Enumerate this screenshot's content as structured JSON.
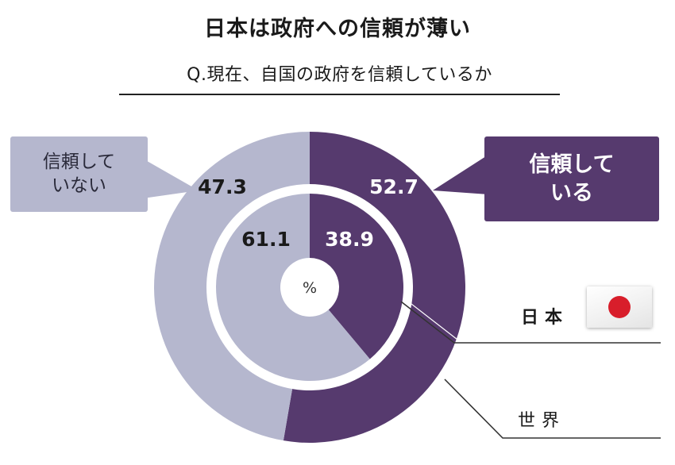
{
  "title": "日本は政府への信頼が薄い",
  "subtitle": "Q.現在、自国の政府を信頼しているか",
  "callouts": {
    "trust": "信頼して\nいる",
    "distrust": "信頼して\nいない"
  },
  "legend": {
    "inner": "日本",
    "outer": "世界"
  },
  "center_unit": "%",
  "colors": {
    "trust": "#563a6e",
    "distrust": "#b5b7ce",
    "text_on_dark": "#ffffff",
    "text_on_light": "#1a1a1a"
  },
  "icons": {
    "japan": "japan-flag-icon"
  },
  "chart_data": {
    "type": "pie",
    "unit": "%",
    "categories": [
      "信頼している",
      "信頼していない"
    ],
    "series": [
      {
        "name": "世界",
        "ring": "outer",
        "values": [
          52.7,
          47.3
        ],
        "labels": [
          "52.7",
          "47.3"
        ]
      },
      {
        "name": "日本",
        "ring": "inner",
        "values": [
          38.9,
          61.1
        ],
        "labels": [
          "38.9",
          "61.1"
        ]
      }
    ]
  }
}
